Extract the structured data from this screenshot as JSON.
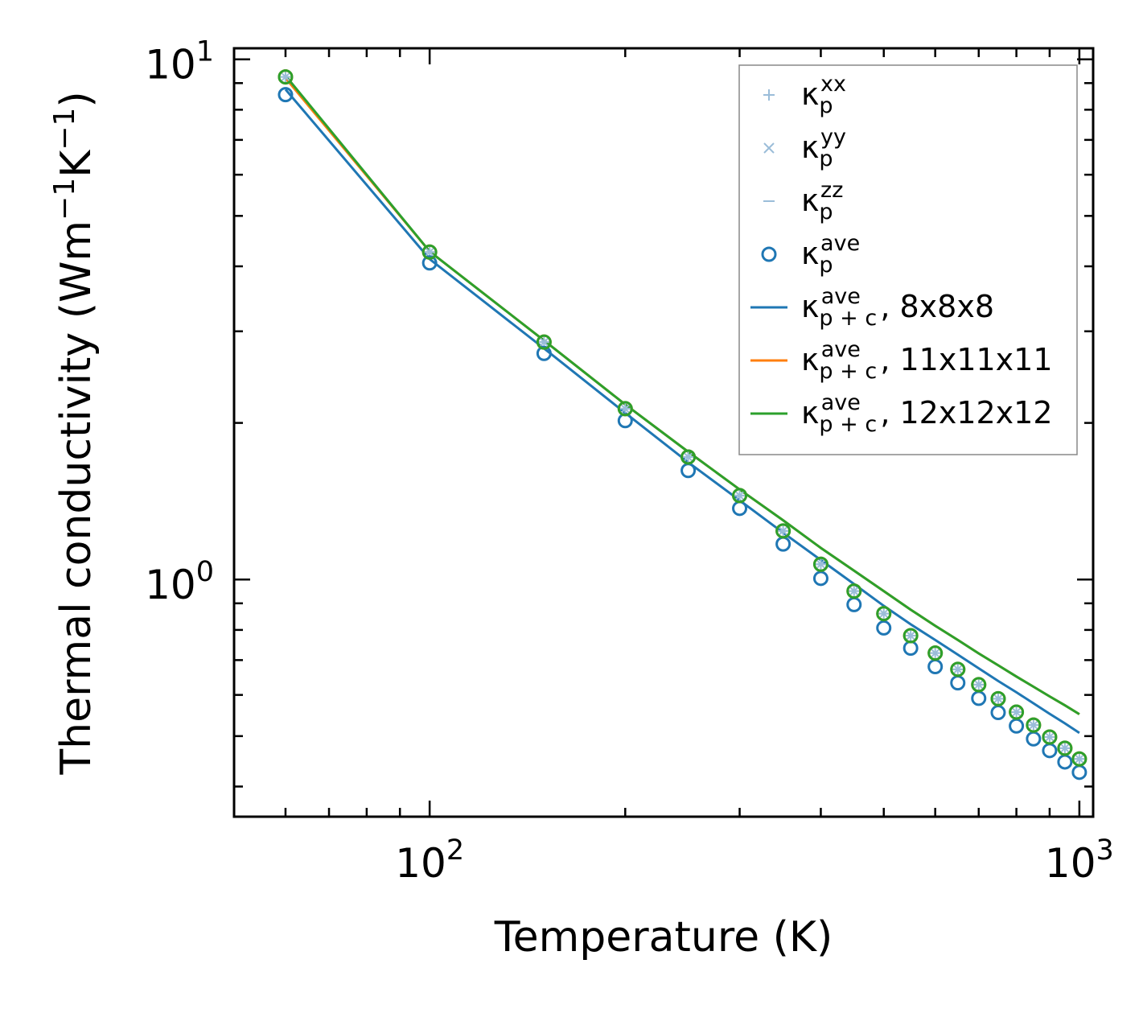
{
  "chart_data": {
    "type": "line",
    "title": "",
    "xlabel": "Temperature (K)",
    "ylabel": "Thermal conductivity (Wm",
    "ylabel_parts": {
      "base": "Thermal conductivity (Wm",
      "exp1": "−1",
      "mid": "K",
      "exp2": "−1",
      "end": ")"
    },
    "xscale": "log",
    "yscale": "log",
    "xlim": [
      50,
      1050
    ],
    "ylim": [
      0.35,
      10.5
    ],
    "x_ticks": [
      {
        "value": 100,
        "base": "10",
        "exp": "2"
      },
      {
        "value": 1000,
        "base": "10",
        "exp": "3"
      }
    ],
    "y_ticks": [
      {
        "value": 1,
        "base": "10",
        "exp": "0"
      },
      {
        "value": 10,
        "base": "10",
        "exp": "1"
      }
    ],
    "x": [
      60,
      100,
      150,
      200,
      250,
      300,
      350,
      400,
      450,
      500,
      550,
      600,
      650,
      700,
      750,
      800,
      850,
      900,
      950,
      1000
    ],
    "series": [
      {
        "name": "κp xx",
        "kind": "marker-plus",
        "color": "#9bbdd9",
        "values": [
          9.25,
          4.26,
          2.86,
          2.13,
          1.72,
          1.45,
          1.24,
          1.07,
          0.95,
          0.86,
          0.78,
          0.722,
          0.672,
          0.628,
          0.59,
          0.556,
          0.525,
          0.498,
          0.474,
          0.452
        ]
      },
      {
        "name": "κp yy",
        "kind": "marker-x",
        "color": "#9bbdd9",
        "values": [
          9.25,
          4.26,
          2.86,
          2.13,
          1.72,
          1.45,
          1.24,
          1.07,
          0.95,
          0.86,
          0.78,
          0.722,
          0.672,
          0.628,
          0.59,
          0.556,
          0.525,
          0.498,
          0.474,
          0.452
        ]
      },
      {
        "name": "κp zz",
        "kind": "marker-dash",
        "color": "#9bbdd9",
        "values": [
          9.25,
          4.26,
          2.86,
          2.13,
          1.72,
          1.45,
          1.24,
          1.07,
          0.95,
          0.86,
          0.78,
          0.722,
          0.672,
          0.628,
          0.59,
          0.556,
          0.525,
          0.498,
          0.474,
          0.452
        ]
      },
      {
        "name": "κp ave 8x8x8",
        "kind": "marker-circle",
        "color": "#1f77b4",
        "values": [
          8.55,
          4.06,
          2.72,
          2.02,
          1.62,
          1.37,
          1.17,
          1.005,
          0.895,
          0.807,
          0.738,
          0.68,
          0.633,
          0.591,
          0.555,
          0.523,
          0.494,
          0.469,
          0.446,
          0.426
        ]
      },
      {
        "name": "κp ave 11x11x11",
        "kind": "marker-circle",
        "color": "#ff7f0e",
        "values": [
          9.25,
          4.26,
          2.86,
          2.13,
          1.72,
          1.45,
          1.24,
          1.07,
          0.95,
          0.86,
          0.78,
          0.722,
          0.672,
          0.628,
          0.59,
          0.556,
          0.525,
          0.498,
          0.474,
          0.452
        ]
      },
      {
        "name": "κp ave 12x12x12",
        "kind": "marker-circle",
        "color": "#2ca02c",
        "values": [
          9.25,
          4.26,
          2.86,
          2.13,
          1.72,
          1.45,
          1.24,
          1.07,
          0.95,
          0.86,
          0.78,
          0.722,
          0.672,
          0.628,
          0.59,
          0.556,
          0.525,
          0.498,
          0.474,
          0.452
        ]
      },
      {
        "name": "κp+c ave, 8x8x8",
        "kind": "line",
        "color": "#1f77b4",
        "values": [
          8.75,
          4.13,
          2.78,
          2.09,
          1.68,
          1.42,
          1.23,
          1.09,
          0.98,
          0.89,
          0.82,
          0.765,
          0.717,
          0.675,
          0.638,
          0.607,
          0.578,
          0.552,
          0.529,
          0.507
        ]
      },
      {
        "name": "κp+c ave, 11x11x11",
        "kind": "line",
        "color": "#ff7f0e",
        "values": [
          9.2,
          4.27,
          2.88,
          2.17,
          1.76,
          1.49,
          1.3,
          1.15,
          1.04,
          0.95,
          0.875,
          0.815,
          0.765,
          0.721,
          0.684,
          0.651,
          0.622,
          0.596,
          0.573,
          0.551
        ]
      },
      {
        "name": "κp+c ave, 12x12x12",
        "kind": "line",
        "color": "#2ca02c",
        "values": [
          9.3,
          4.27,
          2.88,
          2.17,
          1.76,
          1.49,
          1.3,
          1.15,
          1.04,
          0.95,
          0.875,
          0.815,
          0.765,
          0.721,
          0.684,
          0.651,
          0.622,
          0.596,
          0.573,
          0.551
        ]
      }
    ],
    "legend": {
      "position": "top-right",
      "entries": [
        {
          "symbol": "plus",
          "color": "#9bbdd9",
          "sym": "κ",
          "sub": "p",
          "sup": "xx",
          "suffix": ""
        },
        {
          "symbol": "x",
          "color": "#9bbdd9",
          "sym": "κ",
          "sub": "p",
          "sup": "yy",
          "suffix": ""
        },
        {
          "symbol": "dash",
          "color": "#9bbdd9",
          "sym": "κ",
          "sub": "p",
          "sup": "zz",
          "suffix": ""
        },
        {
          "symbol": "circle",
          "color": "#1f77b4",
          "sym": "κ",
          "sub": "p",
          "sup": "ave",
          "suffix": ""
        },
        {
          "symbol": "line",
          "color": "#1f77b4",
          "sym": "κ",
          "sub": "p + c",
          "sup": "ave",
          "suffix": ", 8x8x8"
        },
        {
          "symbol": "line",
          "color": "#ff7f0e",
          "sym": "κ",
          "sub": "p + c",
          "sup": "ave",
          "suffix": ", 11x11x11"
        },
        {
          "symbol": "line",
          "color": "#2ca02c",
          "sym": "κ",
          "sub": "p + c",
          "sup": "ave",
          "suffix": ", 12x12x12"
        }
      ]
    },
    "grid": false
  }
}
